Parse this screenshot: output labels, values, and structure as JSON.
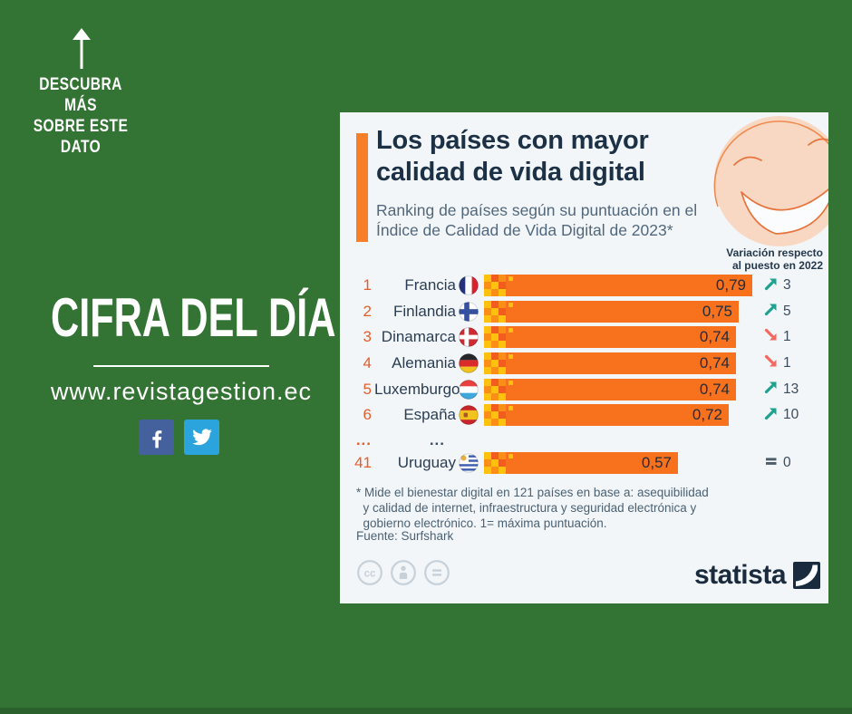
{
  "left_panel": {
    "discover_lines": [
      "DESCUBRA MÁS",
      "SOBRE ESTE",
      "DATO"
    ],
    "headline": "CIFRA DEL DÍA",
    "website": "www.revistagestion.ec",
    "social_icons": [
      "facebook-icon",
      "twitter-icon"
    ]
  },
  "chart": {
    "title": "Los países con mayor calidad de vida digital",
    "subtitle": "Ranking de países según su puntuación en el Índice de Calidad de Vida Digital de 2023*",
    "note_lines": [
      "Variación respecto",
      "al puesto en 2022"
    ],
    "rows": [
      {
        "rank": "1",
        "country": "Francia",
        "flag": "france",
        "value": 0.79,
        "value_label": "0,79",
        "dir": "up",
        "change": "3"
      },
      {
        "rank": "2",
        "country": "Finlandia",
        "flag": "finland",
        "value": 0.75,
        "value_label": "0,75",
        "dir": "up",
        "change": "5"
      },
      {
        "rank": "3",
        "country": "Dinamarca",
        "flag": "denmark",
        "value": 0.74,
        "value_label": "0,74",
        "dir": "down",
        "change": "1"
      },
      {
        "rank": "4",
        "country": "Alemania",
        "flag": "germany",
        "value": 0.74,
        "value_label": "0,74",
        "dir": "down",
        "change": "1"
      },
      {
        "rank": "5",
        "country": "Luxemburgo",
        "flag": "luxembourg",
        "value": 0.74,
        "value_label": "0,74",
        "dir": "up",
        "change": "13"
      },
      {
        "rank": "6",
        "country": "España",
        "flag": "spain",
        "value": 0.72,
        "value_label": "0,72",
        "dir": "up",
        "change": "10"
      },
      {
        "type": "ellipsis",
        "rank_label": "...",
        "country_label": "..."
      },
      {
        "rank": "41",
        "country": "Uruguay",
        "flag": "uruguay",
        "value": 0.57,
        "value_label": "0,57",
        "dir": "same",
        "change": "0"
      }
    ],
    "footnote": "* Mide el bienestar digital en 121 países en base a: asequibilidad\n  y calidad de internet, infraestructura y seguridad electrónica y\n  gobierno electrónico. 1= máxima puntuación.",
    "source": "Fuente: Surfshark",
    "brand": "statista",
    "license_icons": [
      "cc-icon",
      "attribution-icon",
      "equals-icon"
    ]
  },
  "chart_data": {
    "type": "bar",
    "orientation": "horizontal",
    "title": "Los países con mayor calidad de vida digital",
    "subtitle": "Ranking de países según su puntuación en el Índice de Calidad de Vida Digital de 2023*",
    "categories": [
      "Francia",
      "Finlandia",
      "Dinamarca",
      "Alemania",
      "Luxemburgo",
      "España",
      "Uruguay"
    ],
    "values": [
      0.79,
      0.75,
      0.74,
      0.74,
      0.74,
      0.72,
      0.57
    ],
    "value_labels": [
      "0,79",
      "0,75",
      "0,74",
      "0,74",
      "0,74",
      "0,72",
      "0,57"
    ],
    "ranks": [
      1,
      2,
      3,
      4,
      5,
      6,
      41
    ],
    "change_vs_2022": [
      3,
      5,
      -1,
      -1,
      13,
      10,
      0
    ],
    "xlim": [
      0,
      1
    ],
    "grid": false,
    "legend": false,
    "bar_color": "#F8711C",
    "annotation": "Variación respecto al puesto en 2022",
    "source": "Fuente: Surfshark"
  },
  "colors": {
    "background_green": "#337333",
    "bottom_strip_green": "#2B612C",
    "card_background": "#F3F6F9",
    "bar_orange": "#F8711C",
    "accent_orange": "#F87E28",
    "title_navy": "#1C3145",
    "rank_orange": "#E35E2A",
    "change_up_teal": "#1CA28F",
    "change_down_red": "#F4685F",
    "change_same_gray": "#4E5D69",
    "facebook_blue": "#44619D",
    "twitter_blue": "#2BA3DC"
  }
}
